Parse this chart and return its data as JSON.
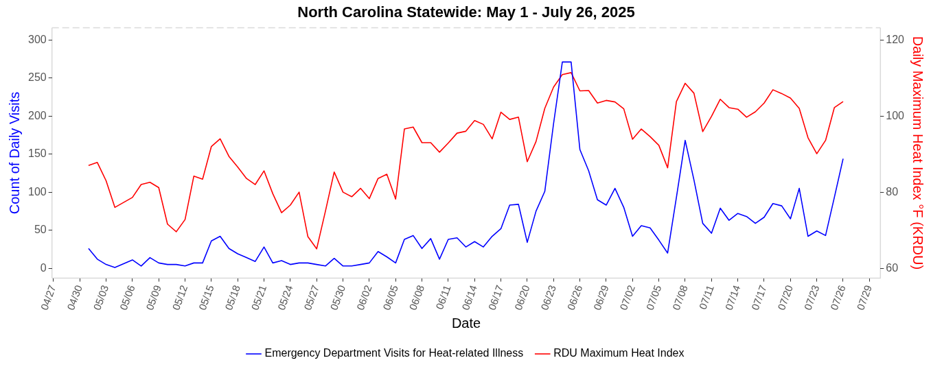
{
  "chart_data": {
    "type": "line",
    "title": "North Carolina Statewide: May 1 - July 26, 2025",
    "xlabel": "Date",
    "ylabel": "Count of Daily Visits",
    "y2label": "Daily Maximum Heat Index °F (KRDU)",
    "x": [
      "2025-05-01",
      "2025-05-02",
      "2025-05-03",
      "2025-05-04",
      "2025-05-05",
      "2025-05-06",
      "2025-05-07",
      "2025-05-08",
      "2025-05-09",
      "2025-05-10",
      "2025-05-11",
      "2025-05-12",
      "2025-05-13",
      "2025-05-14",
      "2025-05-15",
      "2025-05-16",
      "2025-05-17",
      "2025-05-18",
      "2025-05-19",
      "2025-05-20",
      "2025-05-21",
      "2025-05-22",
      "2025-05-23",
      "2025-05-24",
      "2025-05-25",
      "2025-05-26",
      "2025-05-27",
      "2025-05-28",
      "2025-05-29",
      "2025-05-30",
      "2025-05-31",
      "2025-06-01",
      "2025-06-02",
      "2025-06-03",
      "2025-06-04",
      "2025-06-05",
      "2025-06-06",
      "2025-06-07",
      "2025-06-08",
      "2025-06-09",
      "2025-06-10",
      "2025-06-11",
      "2025-06-12",
      "2025-06-13",
      "2025-06-14",
      "2025-06-15",
      "2025-06-16",
      "2025-06-17",
      "2025-06-18",
      "2025-06-19",
      "2025-06-20",
      "2025-06-21",
      "2025-06-22",
      "2025-06-23",
      "2025-06-24",
      "2025-06-25",
      "2025-06-26",
      "2025-06-27",
      "2025-06-28",
      "2025-06-29",
      "2025-06-30",
      "2025-07-01",
      "2025-07-02",
      "2025-07-03",
      "2025-07-04",
      "2025-07-05",
      "2025-07-06",
      "2025-07-07",
      "2025-07-08",
      "2025-07-09",
      "2025-07-10",
      "2025-07-11",
      "2025-07-12",
      "2025-07-13",
      "2025-07-14",
      "2025-07-15",
      "2025-07-16",
      "2025-07-17",
      "2025-07-18",
      "2025-07-19",
      "2025-07-20",
      "2025-07-21",
      "2025-07-22",
      "2025-07-23",
      "2025-07-24",
      "2025-07-25",
      "2025-07-26"
    ],
    "series": [
      {
        "name": "Emergency Department Visits for Heat-related Illness",
        "color": "#0000ff",
        "values": [
          26,
          12,
          5,
          1,
          6,
          11,
          3,
          14,
          7,
          5,
          5,
          3,
          7,
          7,
          36,
          42,
          26,
          19,
          14,
          9,
          28,
          7,
          10,
          5,
          7,
          7,
          5,
          3,
          13,
          3,
          3,
          5,
          7,
          22,
          15,
          7,
          38,
          43,
          26,
          39,
          12,
          38,
          40,
          28,
          35,
          28,
          42,
          52,
          83,
          84,
          34,
          75,
          101,
          190,
          271,
          271,
          156,
          128,
          90,
          83,
          105,
          80,
          42,
          56,
          53,
          37,
          20,
          93,
          168,
          116,
          59,
          46,
          79,
          63,
          72,
          68,
          59,
          67,
          85,
          82,
          65,
          105,
          42,
          49,
          43,
          93,
          144
        ]
      },
      {
        "name": "RDU Maximum Heat Index",
        "color": "#ff0000",
        "axis": "y2",
        "values": [
          87,
          87.8,
          83,
          76,
          77.3,
          78.6,
          82,
          82.6,
          81.2,
          71.6,
          69.6,
          72.8,
          84.2,
          83.4,
          92,
          94,
          89.4,
          86.6,
          83.6,
          82,
          85.6,
          79.6,
          74.6,
          76.6,
          80,
          68.3,
          65.1,
          75,
          85.3,
          80,
          78.8,
          81,
          78.3,
          83.6,
          84.7,
          78.2,
          96.6,
          97.1,
          93,
          93,
          90.5,
          92.9,
          95.5,
          96,
          98.8,
          97.8,
          94,
          101,
          99.1,
          99.7,
          88,
          93.3,
          102,
          107.6,
          110.9,
          111.4,
          106.6,
          106.7,
          103.4,
          104.1,
          103.7,
          101.9,
          93.9,
          96.6,
          94.6,
          92.3,
          86.4,
          103.8,
          108.6,
          106,
          95.9,
          99.9,
          104.4,
          102.2,
          101.8,
          99.7,
          101.1,
          103.4,
          106.9,
          105.9,
          104.7,
          102,
          94.3,
          90.1,
          93.6,
          102.2,
          103.8
        ]
      }
    ],
    "xlim": [
      "2025-04-26T20:00",
      "2025-07-30T06:00"
    ],
    "xticks": [
      {
        "value": "2025-04-27",
        "label": "04/27"
      },
      {
        "value": "2025-04-30",
        "label": "04/30"
      },
      {
        "value": "2025-05-03",
        "label": "05/03"
      },
      {
        "value": "2025-05-06",
        "label": "05/06"
      },
      {
        "value": "2025-05-09",
        "label": "05/09"
      },
      {
        "value": "2025-05-12",
        "label": "05/12"
      },
      {
        "value": "2025-05-15",
        "label": "05/15"
      },
      {
        "value": "2025-05-18",
        "label": "05/18"
      },
      {
        "value": "2025-05-21",
        "label": "05/21"
      },
      {
        "value": "2025-05-24",
        "label": "05/24"
      },
      {
        "value": "2025-05-27",
        "label": "05/27"
      },
      {
        "value": "2025-05-30",
        "label": "05/30"
      },
      {
        "value": "2025-06-02",
        "label": "06/02"
      },
      {
        "value": "2025-06-05",
        "label": "06/05"
      },
      {
        "value": "2025-06-08",
        "label": "06/08"
      },
      {
        "value": "2025-06-11",
        "label": "06/11"
      },
      {
        "value": "2025-06-14",
        "label": "06/14"
      },
      {
        "value": "2025-06-17",
        "label": "06/17"
      },
      {
        "value": "2025-06-20",
        "label": "06/20"
      },
      {
        "value": "2025-06-23",
        "label": "06/23"
      },
      {
        "value": "2025-06-26",
        "label": "06/26"
      },
      {
        "value": "2025-06-29",
        "label": "06/29"
      },
      {
        "value": "2025-07-02",
        "label": "07/02"
      },
      {
        "value": "2025-07-05",
        "label": "07/05"
      },
      {
        "value": "2025-07-08",
        "label": "07/08"
      },
      {
        "value": "2025-07-11",
        "label": "07/11"
      },
      {
        "value": "2025-07-14",
        "label": "07/14"
      },
      {
        "value": "2025-07-17",
        "label": "07/17"
      },
      {
        "value": "2025-07-20",
        "label": "07/20"
      },
      {
        "value": "2025-07-23",
        "label": "07/23"
      },
      {
        "value": "2025-07-26",
        "label": "07/26"
      },
      {
        "value": "2025-07-29",
        "label": "07/29"
      }
    ],
    "ylim": [
      -13,
      316
    ],
    "yticks": [
      0,
      50,
      100,
      150,
      200,
      250,
      300
    ],
    "y2lim": [
      57.4,
      123.2
    ],
    "y2ticks": [
      60,
      80,
      100,
      120
    ],
    "grid": false,
    "legend": "bottom",
    "marker": "none",
    "line_style": "solid"
  }
}
